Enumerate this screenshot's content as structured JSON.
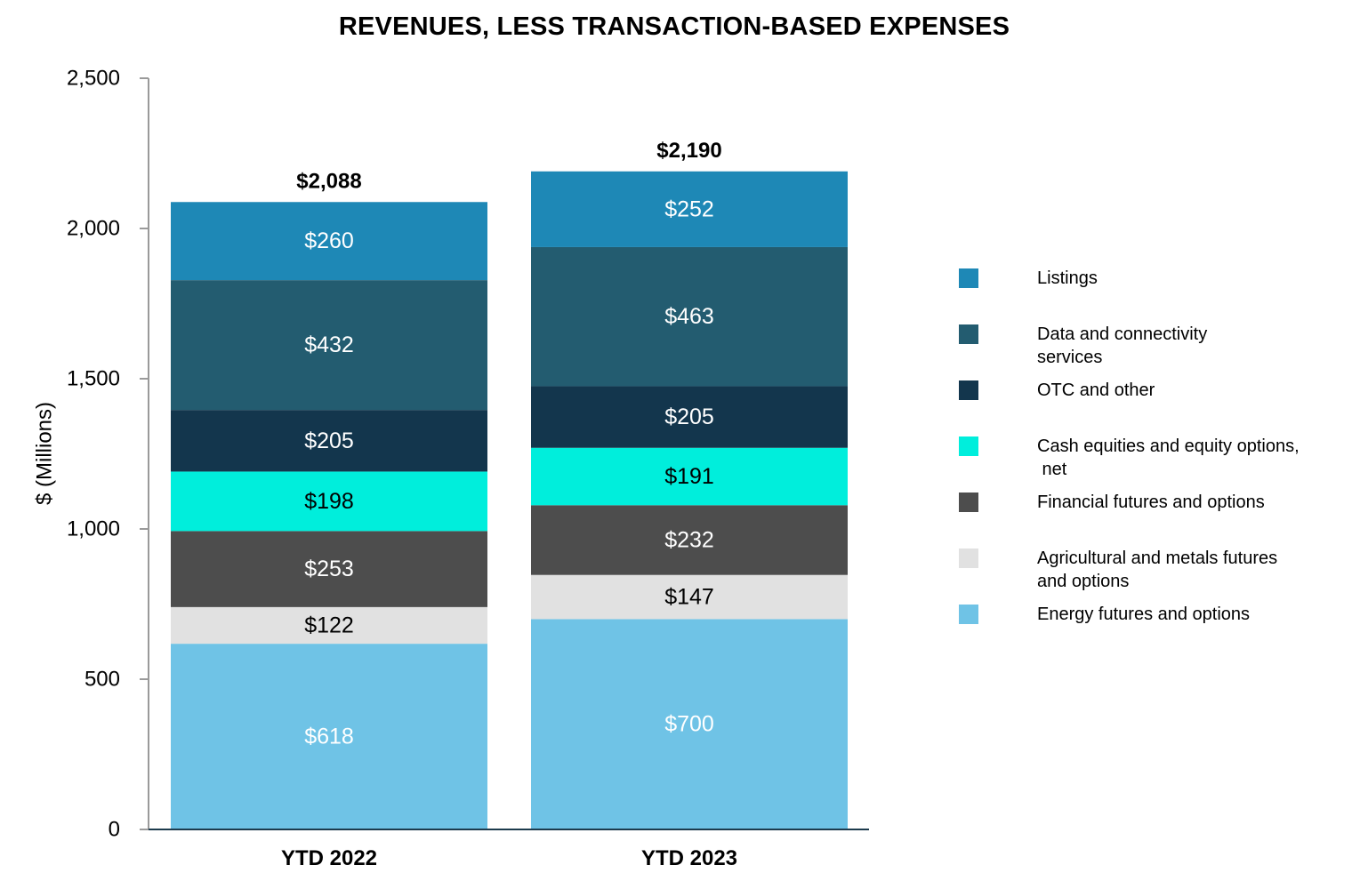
{
  "chart_data": {
    "type": "bar",
    "stacked": true,
    "title": "REVENUES, LESS TRANSACTION-BASED EXPENSES",
    "xlabel": "",
    "ylabel": "$ (Millions)",
    "ylim": [
      0,
      2500
    ],
    "yticks": [
      0,
      500,
      1000,
      1500,
      2000,
      2500
    ],
    "ytick_labels": [
      "0",
      "500",
      "1,000",
      "1,500",
      "2,000",
      "2,500"
    ],
    "grid": false,
    "legend_position": "right",
    "categories": [
      "YTD 2022",
      "YTD 2023"
    ],
    "totals": [
      2088,
      2190
    ],
    "total_labels": [
      "$2,088",
      "$2,190"
    ],
    "series": [
      {
        "name": "Energy futures and options",
        "color": "#6fc3e6",
        "label_color": "#ffffff",
        "values": [
          618,
          700
        ],
        "labels": [
          "$618",
          "$700"
        ]
      },
      {
        "name": "Agricultural and metals futures and options",
        "color": "#e1e1e1",
        "label_color": "#000000",
        "values": [
          122,
          147
        ],
        "labels": [
          "$122",
          "$147"
        ]
      },
      {
        "name": "Financial futures and options",
        "color": "#4d4d4d",
        "label_color": "#ffffff",
        "values": [
          253,
          232
        ],
        "labels": [
          "$253",
          "$232"
        ]
      },
      {
        "name": "Cash equities and equity options, net",
        "color": "#00eedc",
        "label_color": "#000000",
        "values": [
          198,
          191
        ],
        "labels": [
          "$198",
          "$191"
        ]
      },
      {
        "name": "OTC and other",
        "color": "#13364d",
        "label_color": "#ffffff",
        "values": [
          205,
          205
        ],
        "labels": [
          "$205",
          "$205"
        ]
      },
      {
        "name": "Data and connectivity services",
        "color": "#235c70",
        "label_color": "#ffffff",
        "values": [
          432,
          463
        ],
        "labels": [
          "$432",
          "$463"
        ]
      },
      {
        "name": "Listings",
        "color": "#1e88b6",
        "label_color": "#ffffff",
        "values": [
          260,
          252
        ],
        "labels": [
          "$260",
          "$252"
        ]
      }
    ],
    "legend": [
      {
        "key": "listings",
        "color": "#1e88b6",
        "lines": [
          "Listings"
        ]
      },
      {
        "key": "data-connectivity",
        "color": "#235c70",
        "lines": [
          "Data and connectivity",
          "services"
        ]
      },
      {
        "key": "otc-other",
        "color": "#13364d",
        "lines": [
          "OTC and other"
        ]
      },
      {
        "key": "cash-equities",
        "color": "#00eedc",
        "lines": [
          "Cash equities and equity options,",
          " net"
        ]
      },
      {
        "key": "financial-futures",
        "color": "#4d4d4d",
        "lines": [
          "Financial futures and options"
        ]
      },
      {
        "key": "ag-metals",
        "color": "#e1e1e1",
        "lines": [
          "Agricultural and metals futures",
          "and options"
        ]
      },
      {
        "key": "energy-futures",
        "color": "#6fc3e6",
        "lines": [
          "Energy futures and options"
        ]
      }
    ]
  }
}
